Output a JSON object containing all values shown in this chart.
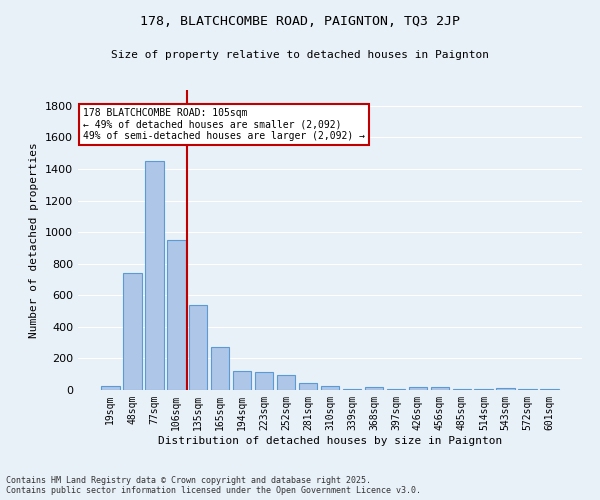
{
  "title1": "178, BLATCHCOMBE ROAD, PAIGNTON, TQ3 2JP",
  "title2": "Size of property relative to detached houses in Paignton",
  "xlabel": "Distribution of detached houses by size in Paignton",
  "ylabel": "Number of detached properties",
  "categories": [
    "19sqm",
    "48sqm",
    "77sqm",
    "106sqm",
    "135sqm",
    "165sqm",
    "194sqm",
    "223sqm",
    "252sqm",
    "281sqm",
    "310sqm",
    "339sqm",
    "368sqm",
    "397sqm",
    "426sqm",
    "456sqm",
    "485sqm",
    "514sqm",
    "543sqm",
    "572sqm",
    "601sqm"
  ],
  "values": [
    25,
    740,
    1450,
    950,
    540,
    275,
    120,
    115,
    95,
    42,
    28,
    5,
    20,
    5,
    20,
    20,
    5,
    5,
    15,
    5,
    5
  ],
  "bar_color": "#aec6e8",
  "bar_edge_color": "#5b9bd5",
  "bg_color": "#e8f0f8",
  "grid_color": "#ffffff",
  "vline_x": 3.5,
  "vline_color": "#c00000",
  "annotation_text": "178 BLATCHCOMBE ROAD: 105sqm\n← 49% of detached houses are smaller (2,092)\n49% of semi-detached houses are larger (2,092) →",
  "annotation_box_color": "#ffffff",
  "annotation_box_edge": "#c00000",
  "footnote": "Contains HM Land Registry data © Crown copyright and database right 2025.\nContains public sector information licensed under the Open Government Licence v3.0.",
  "ylim": [
    0,
    1900
  ],
  "yticks": [
    0,
    200,
    400,
    600,
    800,
    1000,
    1200,
    1400,
    1600,
    1800
  ]
}
